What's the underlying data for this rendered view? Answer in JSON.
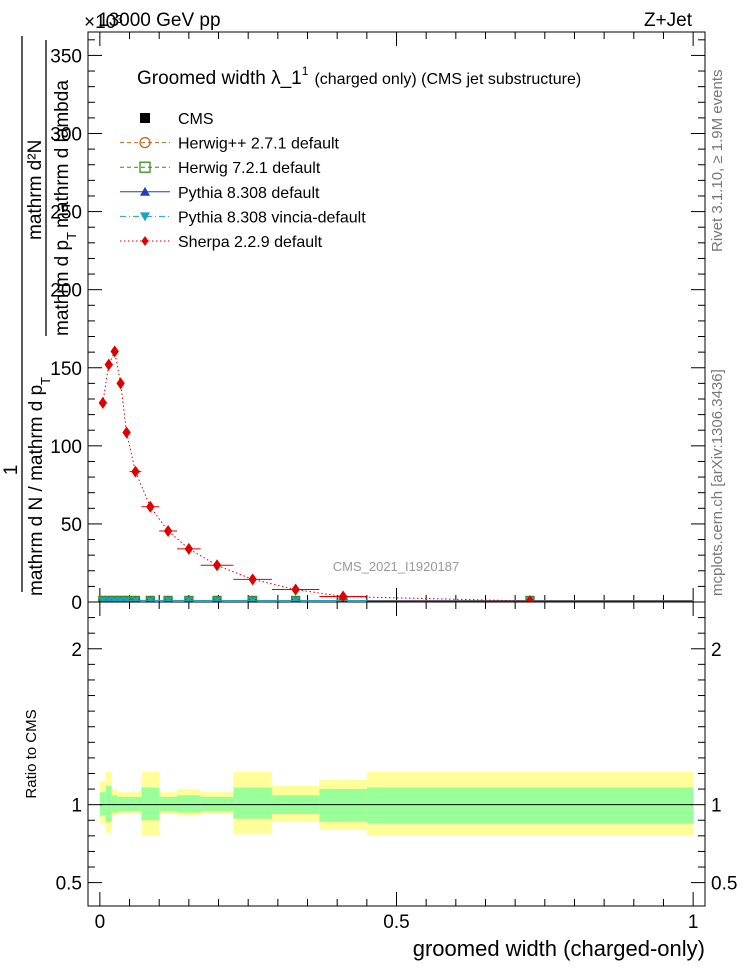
{
  "header": {
    "left": "13000 GeV pp",
    "right": "Z+Jet",
    "exponent": "×10³"
  },
  "side_text": {
    "rivet": "Rivet 3.1.10, ≥ 1.9M events",
    "mcplots": "mcplots.cern.ch [arXiv:1306.3436]"
  },
  "chart_data": [
    {
      "type": "line",
      "panel": "main",
      "title": "Groomed width  λ_1¹ (charged only) (CMS jet substructure)",
      "title_main": "Groomed width  λ_1",
      "title_sup": "1",
      "title_rest": "(charged only) (CMS jet substructure)",
      "watermark": "CMS_2021_I1920187",
      "ylabel_parts": {
        "one": "1",
        "lower": "mathrm d N / mathrm d p",
        "lower_sub": "T",
        "upper": "mathrm d²N",
        "upper_denom": "mathrm d p",
        "upper_denom_sub": "T",
        "upper_denom2": "mathrm d lambda"
      },
      "ylim": [
        0,
        365
      ],
      "y_multiplier": "×10³",
      "xlim": [
        -0.02,
        1.02
      ],
      "yticks": [
        0,
        50,
        100,
        150,
        200,
        250,
        300,
        350
      ],
      "legend": [
        {
          "label": "CMS",
          "marker": "square-filled",
          "color": "#000000",
          "line": "none"
        },
        {
          "label": "Herwig++ 2.7.1 default",
          "marker": "circle-open",
          "color": "#c06a1e",
          "line": "dashed"
        },
        {
          "label": "Herwig 7.2.1 default",
          "marker": "square-open",
          "color": "#3a8c1e",
          "line": "dashed"
        },
        {
          "label": "Pythia 8.308 default",
          "marker": "triangle-up",
          "color": "#1f3fbf",
          "line": "solid"
        },
        {
          "label": "Pythia 8.308 vincia-default",
          "marker": "triangle-down",
          "color": "#1aa3bf",
          "line": "dashdot"
        },
        {
          "label": "Sherpa 2.2.9 default",
          "marker": "diamond",
          "color": "#e00000",
          "line": "dotted"
        }
      ],
      "bins": [
        0.0,
        0.01,
        0.02,
        0.03,
        0.04,
        0.05,
        0.07,
        0.1,
        0.13,
        0.17,
        0.225,
        0.29,
        0.37,
        0.45,
        1.0
      ],
      "series": [
        {
          "name": "CMS",
          "x": [
            0.005,
            0.015,
            0.025,
            0.035,
            0.045,
            0.06,
            0.085,
            0.115,
            0.15,
            0.1975,
            0.2575,
            0.33,
            0.41,
            0.725
          ],
          "y": [
            1,
            1,
            1,
            1,
            1,
            1,
            1,
            1,
            1,
            1,
            1,
            1,
            1,
            1
          ]
        },
        {
          "name": "Herwig++ 2.7.1 default",
          "x": [
            0.005,
            0.015,
            0.025,
            0.035,
            0.045,
            0.06,
            0.085,
            0.115,
            0.15,
            0.1975,
            0.2575,
            0.33,
            0.41,
            0.725
          ],
          "y": [
            1,
            1,
            1,
            1,
            1,
            1,
            1,
            1,
            1,
            1,
            1,
            1,
            1,
            1
          ]
        },
        {
          "name": "Herwig 7.2.1 default",
          "x": [
            0.005,
            0.015,
            0.025,
            0.035,
            0.045,
            0.06,
            0.085,
            0.115,
            0.15,
            0.1975,
            0.2575,
            0.33,
            0.41,
            0.725
          ],
          "y": [
            1,
            1,
            1,
            1,
            1,
            1,
            1,
            1,
            1,
            1,
            1,
            1,
            1,
            1
          ]
        },
        {
          "name": "Pythia 8.308 default",
          "x": [
            0.005,
            0.015,
            0.025,
            0.035,
            0.045,
            0.06,
            0.085,
            0.115,
            0.15,
            0.1975,
            0.2575,
            0.33,
            0.41,
            0.725
          ],
          "y": [
            1,
            1,
            1,
            1,
            1,
            1,
            1,
            1,
            1,
            1,
            1,
            1,
            1,
            1
          ]
        },
        {
          "name": "Pythia 8.308 vincia-default",
          "x": [
            0.005,
            0.015,
            0.025,
            0.035,
            0.045,
            0.06,
            0.085,
            0.115,
            0.15,
            0.1975,
            0.2575,
            0.33,
            0.41,
            0.725
          ],
          "y": [
            1,
            1,
            1,
            1,
            1,
            1,
            1,
            1,
            1,
            1,
            1,
            1,
            1,
            1
          ]
        },
        {
          "name": "Sherpa 2.2.9 default",
          "x": [
            0.005,
            0.015,
            0.025,
            0.035,
            0.045,
            0.06,
            0.085,
            0.115,
            0.15,
            0.1975,
            0.2575,
            0.33,
            0.41,
            0.725
          ],
          "y": [
            127.5,
            152,
            160.5,
            140,
            108.5,
            83.5,
            61,
            45.5,
            34,
            23.5,
            14.5,
            8,
            3.5,
            0.6
          ]
        }
      ]
    },
    {
      "type": "area",
      "panel": "ratio",
      "ylabel": "Ratio to CMS",
      "ylim": [
        0.35,
        2.3
      ],
      "yticks": [
        0.5,
        1,
        2
      ],
      "ytick_labels": [
        "0.5",
        "1",
        "2"
      ],
      "xlabel": "groomed width (charged-only)",
      "xlim": [
        -0.02,
        1.02
      ],
      "xticks": [
        0,
        0.5,
        1
      ],
      "xtick_labels": [
        "0",
        "0.5",
        "1"
      ],
      "reference_line": 1,
      "bins": [
        0.0,
        0.01,
        0.02,
        0.03,
        0.04,
        0.05,
        0.07,
        0.1,
        0.13,
        0.17,
        0.225,
        0.29,
        0.37,
        0.45,
        1.0
      ],
      "band_inner": {
        "color": "#99ff99",
        "lo": [
          0.93,
          0.89,
          0.95,
          0.96,
          0.96,
          0.96,
          0.9,
          0.96,
          0.95,
          0.96,
          0.91,
          0.94,
          0.89,
          0.88
        ],
        "hi": [
          1.08,
          1.12,
          1.06,
          1.05,
          1.05,
          1.05,
          1.11,
          1.05,
          1.06,
          1.05,
          1.11,
          1.06,
          1.1,
          1.11
        ]
      },
      "band_outer": {
        "color": "#ffff99",
        "lo": [
          0.88,
          0.82,
          0.93,
          0.94,
          0.94,
          0.94,
          0.8,
          0.94,
          0.93,
          0.94,
          0.81,
          0.89,
          0.84,
          0.8
        ],
        "hi": [
          1.15,
          1.21,
          1.1,
          1.08,
          1.08,
          1.08,
          1.21,
          1.08,
          1.1,
          1.08,
          1.21,
          1.12,
          1.16,
          1.21
        ]
      }
    }
  ]
}
